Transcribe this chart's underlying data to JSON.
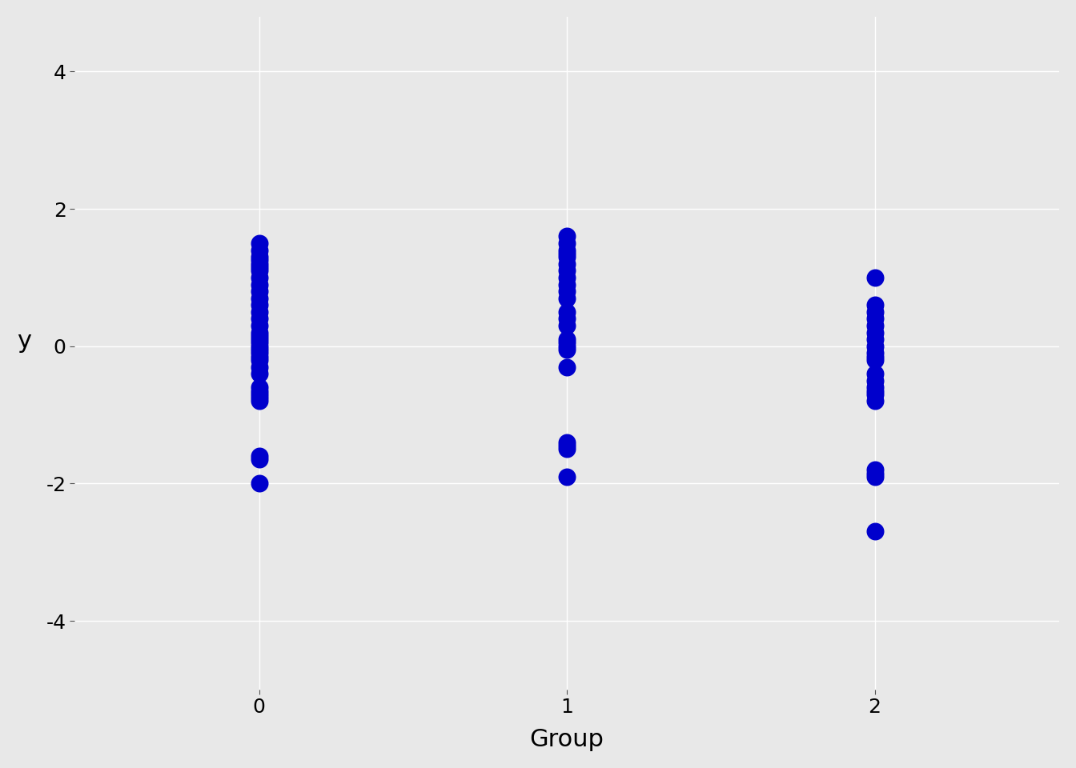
{
  "group0_y": [
    1.5,
    1.4,
    1.3,
    1.25,
    1.2,
    1.15,
    1.1,
    1.0,
    0.9,
    0.8,
    0.7,
    0.6,
    0.5,
    0.4,
    0.3,
    0.2,
    0.15,
    0.1,
    0.05,
    0.0,
    -0.05,
    -0.1,
    -0.15,
    -0.2,
    -0.3,
    -0.4,
    -0.6,
    -0.65,
    -0.7,
    -0.75,
    -0.8,
    -1.6,
    -1.65,
    -2.0
  ],
  "group1_y": [
    1.6,
    1.5,
    1.4,
    1.35,
    1.3,
    1.2,
    1.1,
    1.0,
    0.9,
    0.8,
    0.7,
    0.5,
    0.4,
    0.3,
    0.1,
    0.05,
    0.0,
    -0.05,
    -0.3,
    -1.4,
    -1.45,
    -1.5,
    -1.9
  ],
  "group2_y": [
    1.0,
    0.6,
    0.5,
    0.4,
    0.3,
    0.2,
    0.1,
    0.0,
    -0.1,
    -0.15,
    -0.2,
    -0.4,
    -0.5,
    -0.6,
    -0.65,
    -0.7,
    -0.8,
    -1.8,
    -1.85,
    -1.9,
    -2.7
  ],
  "group0_x": 0,
  "group1_x": 1,
  "group2_x": 2,
  "dot_color": "#0000cc",
  "dot_size": 220,
  "background_color": "#e8e8e8",
  "grid_color": "#ffffff",
  "xlabel": "Group",
  "ylabel": "y",
  "xlim": [
    -0.6,
    2.6
  ],
  "ylim": [
    -5.0,
    4.8
  ],
  "yticks": [
    -4,
    -2,
    0,
    2,
    4
  ],
  "xticks": [
    0,
    1,
    2
  ],
  "xlabel_fontsize": 22,
  "ylabel_fontsize": 22,
  "tick_fontsize": 18
}
